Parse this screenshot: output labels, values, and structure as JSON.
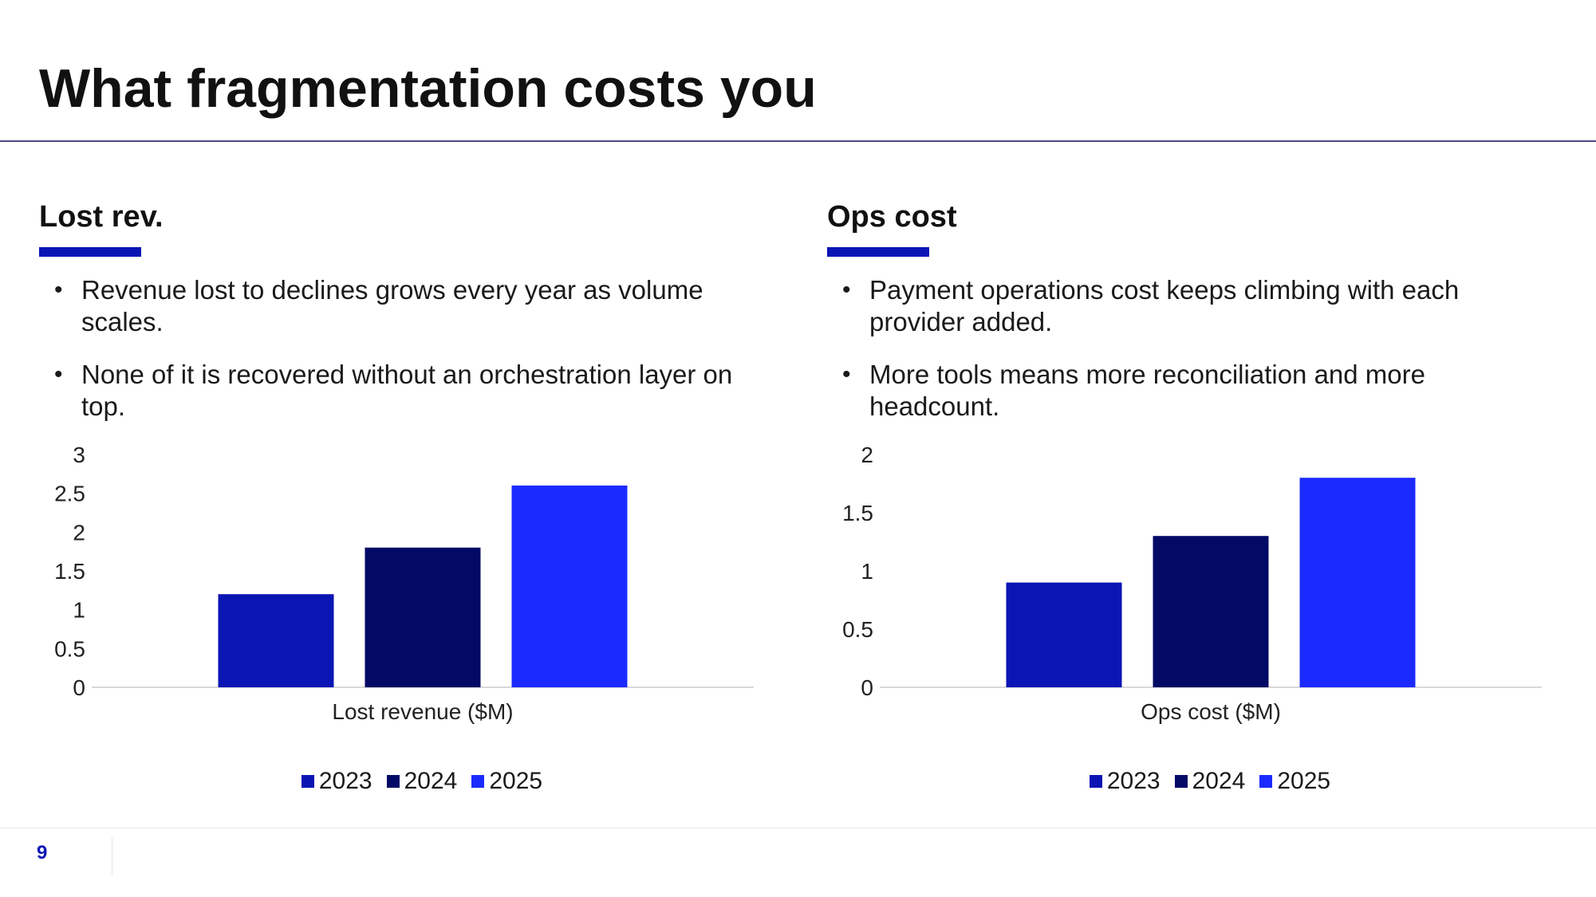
{
  "slide": {
    "title": "What fragmentation costs you",
    "page_number": "9",
    "accent_color": "#0b15b4"
  },
  "panels": [
    {
      "heading": "Lost rev.",
      "bullets": [
        "Revenue lost to declines grows every year as volume scales.",
        "None of it is recovered without an orchestration layer on top."
      ]
    },
    {
      "heading": "Ops cost",
      "bullets": [
        "Payment operations cost keeps climbing with each provider added.",
        "More tools means more reconciliation and more headcount."
      ]
    }
  ],
  "chart_data": [
    {
      "type": "bar",
      "categories": [
        "Lost revenue ($M)"
      ],
      "series": [
        {
          "name": "2023",
          "values": [
            1.2
          ],
          "color": "#0b15b4"
        },
        {
          "name": "2024",
          "values": [
            1.8
          ],
          "color": "#030a66"
        },
        {
          "name": "2025",
          "values": [
            2.6
          ],
          "color": "#1b2bff"
        }
      ],
      "ylim": [
        0,
        3
      ],
      "yticks": [
        "0",
        "0.5",
        "1",
        "1.5",
        "2",
        "2.5",
        "3"
      ],
      "legend": "bottom",
      "grid": false
    },
    {
      "type": "bar",
      "categories": [
        "Ops cost ($M)"
      ],
      "series": [
        {
          "name": "2023",
          "values": [
            0.9
          ],
          "color": "#0b15b4"
        },
        {
          "name": "2024",
          "values": [
            1.3
          ],
          "color": "#030a66"
        },
        {
          "name": "2025",
          "values": [
            1.8
          ],
          "color": "#1b2bff"
        }
      ],
      "ylim": [
        0,
        2
      ],
      "yticks": [
        "0",
        "0.5",
        "1",
        "1.5",
        "2"
      ],
      "legend": "bottom",
      "grid": false
    }
  ]
}
